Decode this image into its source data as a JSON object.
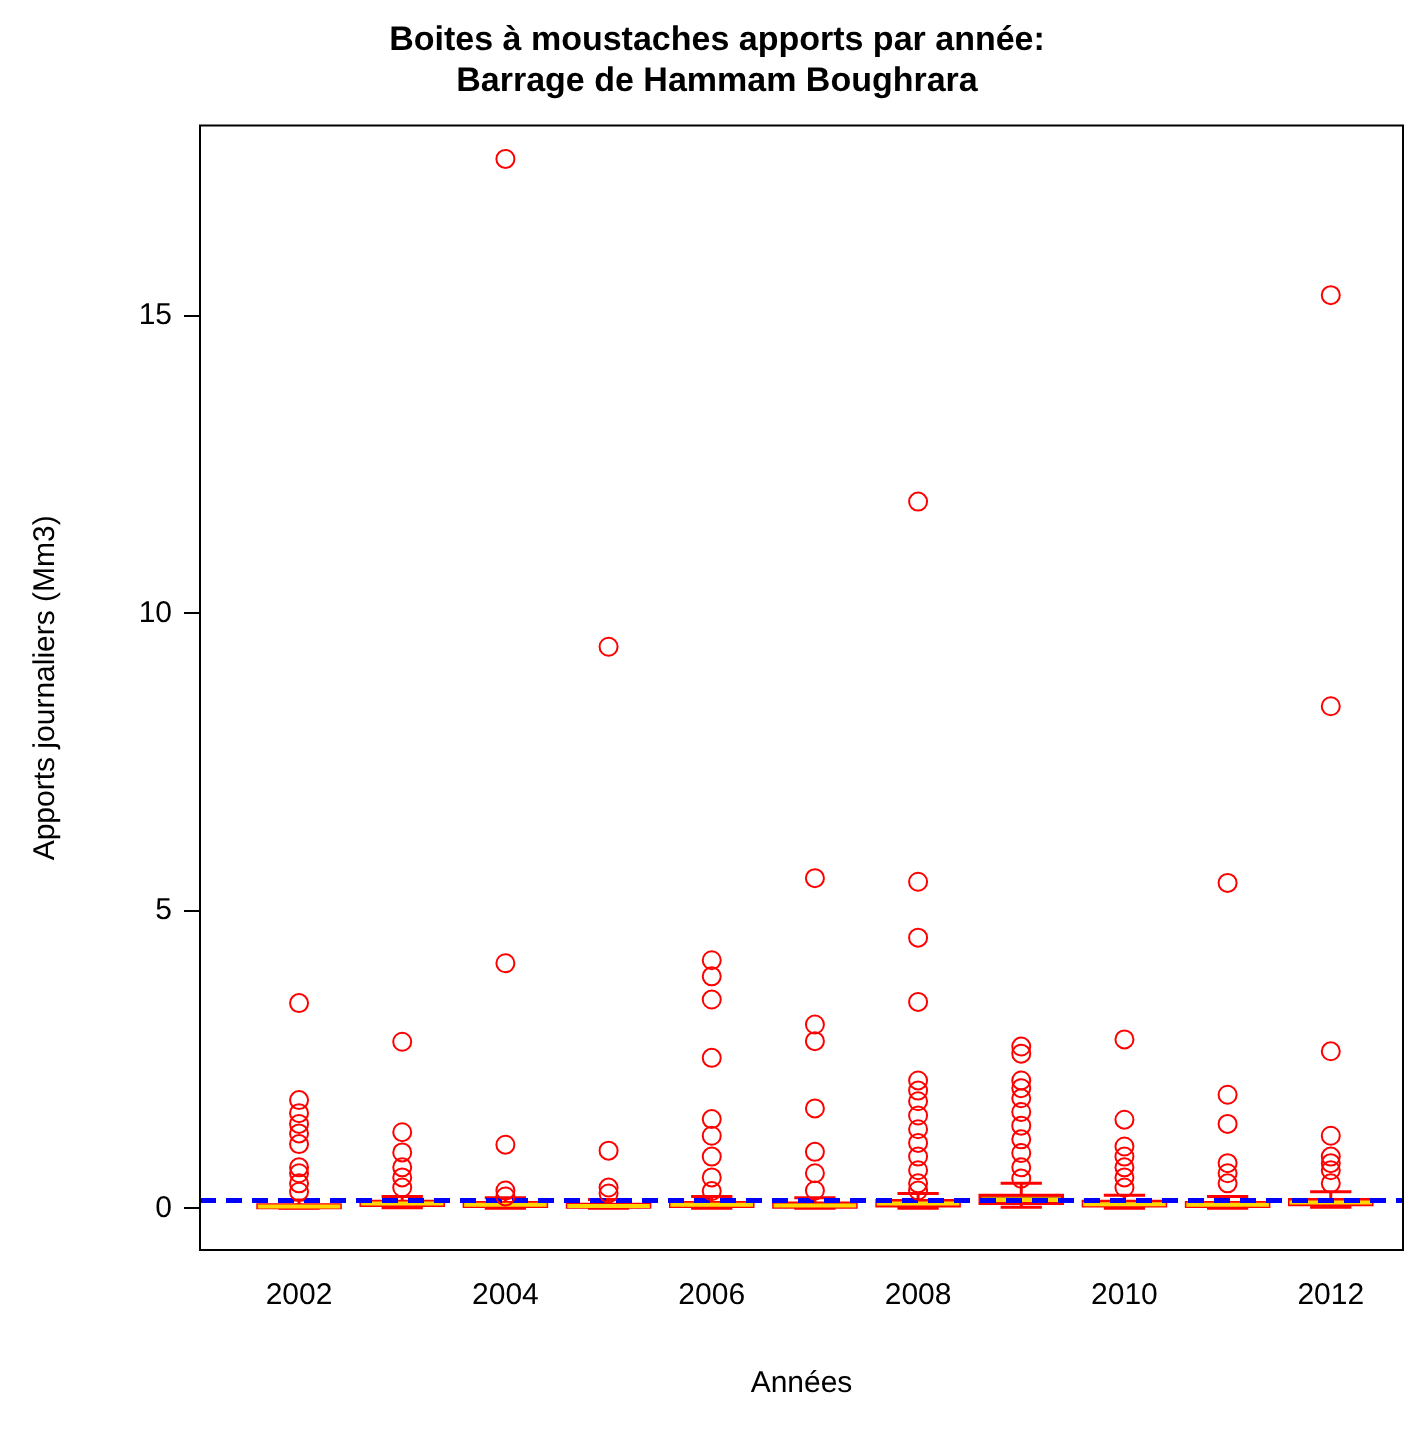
{
  "chart_data": {
    "type": "box",
    "title": "Boites à moustaches apports par année:\nBarrage de Hammam Boughrara",
    "xlabel": "Années",
    "ylabel": "Apports journaliers (Mm3)",
    "categories": [
      "2002",
      null,
      "2004",
      null,
      "2006",
      null,
      "2008",
      null,
      "2010",
      null,
      "2012"
    ],
    "ylim": [
      -0.7,
      18.2
    ],
    "yticks": [
      0,
      5,
      10,
      15
    ],
    "grid": false,
    "legend": false,
    "marker": "circle",
    "series": [
      {
        "color": "#ff0000",
        "colors": [
          "#ff0000",
          "#ff0000",
          "#ff0000",
          "#ff0000",
          "#ff0000",
          "#ff0000",
          "#ff0000",
          "#cc8800",
          "#ff0000",
          "#ff0000",
          "#ff0000"
        ],
        "boxes": [
          {
            "low": 0,
            "q1": 0.01,
            "median": 0.03,
            "q3": 0.06,
            "high": 0.14,
            "outliers": [
              3.45,
              1.82,
              1.6,
              1.42,
              1.26,
              1.08,
              0.69,
              0.59,
              0.42,
              0.28
            ]
          },
          {
            "low": 0.01,
            "q1": 0.05,
            "median": 0.08,
            "q3": 0.12,
            "high": 0.2,
            "outliers": [
              2.8,
              1.28,
              0.94,
              0.69,
              0.52,
              0.35
            ]
          },
          {
            "low": 0,
            "q1": 0.03,
            "median": 0.06,
            "q3": 0.1,
            "high": 0.18,
            "outliers": [
              17.64,
              4.12,
              1.07,
              0.3,
              0.2
            ]
          },
          {
            "low": 0,
            "q1": 0.02,
            "median": 0.04,
            "q3": 0.07,
            "high": 0.15,
            "outliers": [
              9.44,
              0.97,
              0.35,
              0.25
            ]
          },
          {
            "low": 0,
            "q1": 0.03,
            "median": 0.06,
            "q3": 0.1,
            "high": 0.2,
            "outliers": [
              4.17,
              3.9,
              3.51,
              2.53,
              1.5,
              1.22,
              0.87,
              0.52,
              0.29
            ]
          },
          {
            "low": 0,
            "q1": 0.02,
            "median": 0.05,
            "q3": 0.09,
            "high": 0.18,
            "outliers": [
              5.55,
              3.09,
              2.81,
              1.68,
              0.95,
              0.59,
              0.3
            ]
          },
          {
            "low": 0,
            "q1": 0.04,
            "median": 0.08,
            "q3": 0.13,
            "high": 0.25,
            "outliers": [
              11.88,
              5.49,
              4.55,
              3.47,
              2.15,
              1.98,
              1.8,
              1.56,
              1.33,
              1.1,
              0.87,
              0.64,
              0.42,
              0.3
            ]
          },
          {
            "low": 0.02,
            "q1": 0.08,
            "median": 0.14,
            "q3": 0.22,
            "high": 0.42,
            "outliers": [
              2.72,
              2.6,
              2.15,
              2.02,
              1.85,
              1.62,
              1.39,
              1.16,
              0.93,
              0.69,
              0.5
            ]
          },
          {
            "low": 0,
            "q1": 0.04,
            "median": 0.07,
            "q3": 0.12,
            "high": 0.22,
            "outliers": [
              2.84,
              1.49,
              1.04,
              0.87,
              0.69,
              0.52,
              0.35
            ]
          },
          {
            "low": 0,
            "q1": 0.03,
            "median": 0.06,
            "q3": 0.1,
            "high": 0.2,
            "outliers": [
              5.47,
              1.91,
              1.42,
              0.76,
              0.59,
              0.42
            ]
          },
          {
            "low": 0.02,
            "q1": 0.06,
            "median": 0.1,
            "q3": 0.15,
            "high": 0.28,
            "outliers": [
              15.35,
              8.44,
              2.64,
              1.22,
              0.87,
              0.76,
              0.64,
              0.42
            ]
          }
        ]
      }
    ],
    "ref_lines": [
      {
        "axis": "y",
        "value": 0.13,
        "color": "#0000ff",
        "line_style": "dashed"
      }
    ]
  }
}
